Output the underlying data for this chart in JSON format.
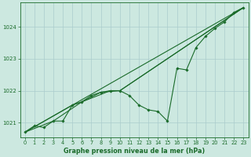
{
  "title": "Graphe pression niveau de la mer (hPa)",
  "bg_color": "#cce8e0",
  "grid_color": "#aacccc",
  "line_color": "#1a6b2a",
  "axis_color": "#1a6b2a",
  "xlim": [
    -0.5,
    23.5
  ],
  "ylim": [
    1020.55,
    1024.75
  ],
  "yticks": [
    1021,
    1022,
    1023,
    1024
  ],
  "xticks": [
    0,
    1,
    2,
    3,
    4,
    5,
    6,
    7,
    8,
    9,
    10,
    11,
    12,
    13,
    14,
    15,
    16,
    17,
    18,
    19,
    20,
    21,
    22,
    23
  ],
  "series_main": [
    [
      0,
      1020.7
    ],
    [
      1,
      1020.9
    ],
    [
      2,
      1020.85
    ],
    [
      3,
      1021.05
    ],
    [
      4,
      1021.05
    ],
    [
      5,
      1021.55
    ],
    [
      6,
      1021.65
    ],
    [
      7,
      1021.85
    ],
    [
      8,
      1021.95
    ],
    [
      9,
      1022.0
    ],
    [
      10,
      1022.0
    ],
    [
      11,
      1021.85
    ],
    [
      12,
      1021.55
    ],
    [
      13,
      1021.4
    ],
    [
      14,
      1021.35
    ],
    [
      15,
      1021.05
    ],
    [
      16,
      1022.7
    ],
    [
      17,
      1022.65
    ],
    [
      18,
      1023.35
    ],
    [
      19,
      1023.7
    ],
    [
      20,
      1023.95
    ],
    [
      21,
      1024.15
    ],
    [
      22,
      1024.45
    ],
    [
      23,
      1024.6
    ]
  ],
  "series_trend1": [
    [
      0,
      1020.7
    ],
    [
      23,
      1024.6
    ]
  ],
  "series_trend2": [
    [
      0,
      1020.7
    ],
    [
      5,
      1021.55
    ],
    [
      6,
      1021.65
    ],
    [
      9,
      1022.0
    ],
    [
      10,
      1022.0
    ],
    [
      23,
      1024.6
    ]
  ],
  "series_trend3": [
    [
      0,
      1020.7
    ],
    [
      3,
      1021.05
    ],
    [
      6,
      1021.65
    ],
    [
      8,
      1021.95
    ],
    [
      10,
      1022.0
    ],
    [
      23,
      1024.6
    ]
  ],
  "title_fontsize": 5.8,
  "tick_fontsize": 4.8,
  "ylabel_fontsize": 5.5,
  "marker_size": 1.8,
  "line_width": 0.8
}
